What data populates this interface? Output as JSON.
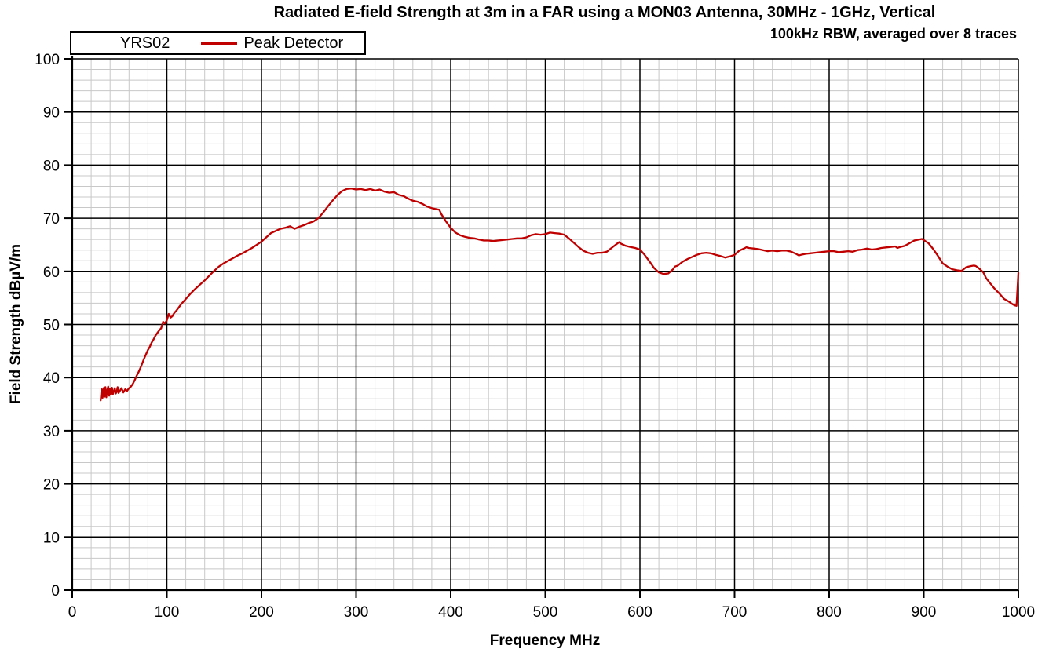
{
  "header": {
    "title": "Radiated E-field Strength at 3m in a FAR using a MON03 Antenna, 30MHz - 1GHz, Vertical",
    "subtitle": "100kHz RBW, averaged over 8 traces"
  },
  "legend": {
    "series_name": "YRS02",
    "detector_label": "Peak Detector"
  },
  "colors": {
    "trace": "#C00000",
    "grid_minor": "#C8C8C8",
    "grid_major": "#000000",
    "axis": "#000000",
    "background": "#FFFFFF"
  },
  "chart_data": {
    "type": "line",
    "title": "Radiated E-field Strength at 3m in a FAR using a MON03 Antenna, 30MHz - 1GHz, Vertical",
    "subtitle": "100kHz RBW, averaged over 8 traces",
    "xlabel": "Frequency MHz",
    "ylabel": "Field Strength dBµV/m",
    "xlim": [
      0,
      1000
    ],
    "ylim": [
      0,
      100
    ],
    "x_ticks": [
      0,
      100,
      200,
      300,
      400,
      500,
      600,
      700,
      800,
      900,
      1000
    ],
    "y_ticks": [
      0,
      10,
      20,
      30,
      40,
      50,
      60,
      70,
      80,
      90,
      100
    ],
    "x_minor_step": 20,
    "y_minor_step": 2,
    "grid": true,
    "legend_position": "top-left",
    "series": [
      {
        "name": "YRS02 Peak Detector",
        "color": "#C00000",
        "x": [
          30,
          31,
          32,
          33,
          34,
          35,
          36,
          37,
          38,
          39,
          40,
          41,
          42,
          43,
          44,
          45,
          46,
          47,
          48,
          49,
          50,
          52,
          54,
          56,
          58,
          60,
          62,
          64,
          66,
          68,
          70,
          72,
          74,
          76,
          78,
          80,
          82,
          84,
          86,
          88,
          90,
          92,
          94,
          96,
          98,
          100,
          102,
          104,
          106,
          108,
          110,
          115,
          120,
          125,
          130,
          135,
          140,
          145,
          150,
          155,
          160,
          165,
          170,
          175,
          180,
          185,
          190,
          195,
          200,
          205,
          210,
          215,
          220,
          225,
          230,
          235,
          240,
          245,
          250,
          255,
          260,
          265,
          270,
          275,
          280,
          285,
          290,
          295,
          300,
          305,
          310,
          315,
          320,
          325,
          330,
          335,
          340,
          345,
          350,
          355,
          360,
          365,
          370,
          375,
          380,
          385,
          388,
          390,
          395,
          400,
          405,
          410,
          415,
          420,
          425,
          430,
          435,
          440,
          445,
          450,
          455,
          460,
          465,
          470,
          475,
          480,
          485,
          490,
          495,
          500,
          505,
          510,
          515,
          520,
          525,
          530,
          535,
          540,
          545,
          550,
          555,
          560,
          565,
          570,
          575,
          578,
          580,
          585,
          590,
          595,
          600,
          605,
          610,
          615,
          620,
          625,
          630,
          635,
          637,
          640,
          645,
          650,
          655,
          660,
          665,
          670,
          675,
          680,
          685,
          690,
          695,
          700,
          705,
          710,
          713,
          715,
          720,
          725,
          730,
          735,
          740,
          745,
          750,
          755,
          760,
          765,
          768,
          770,
          775,
          780,
          785,
          790,
          795,
          800,
          805,
          810,
          815,
          820,
          825,
          830,
          835,
          840,
          845,
          850,
          855,
          860,
          865,
          870,
          872,
          875,
          880,
          885,
          890,
          895,
          898,
          900,
          905,
          910,
          915,
          920,
          925,
          930,
          935,
          940,
          945,
          950,
          953,
          955,
          958,
          960,
          963,
          966,
          970,
          975,
          980,
          985,
          990,
          993,
          996,
          998,
          1000
        ],
        "y": [
          35.7,
          37.8,
          36.2,
          38.0,
          36.4,
          38.2,
          36.3,
          37.6,
          38.3,
          36.6,
          37.9,
          36.8,
          38.1,
          36.9,
          37.4,
          38.0,
          37.0,
          37.3,
          38.2,
          37.1,
          37.4,
          38.0,
          37.2,
          37.8,
          37.5,
          38.0,
          38.3,
          38.8,
          39.5,
          40.3,
          41.0,
          41.8,
          42.7,
          43.6,
          44.4,
          45.2,
          45.8,
          46.6,
          47.2,
          47.9,
          48.4,
          48.9,
          49.3,
          50.5,
          50.2,
          50.8,
          52.0,
          51.3,
          51.6,
          52.2,
          52.6,
          53.8,
          54.8,
          55.8,
          56.7,
          57.5,
          58.3,
          59.2,
          60.1,
          60.9,
          61.5,
          62.0,
          62.5,
          63.0,
          63.4,
          63.9,
          64.4,
          65.0,
          65.6,
          66.4,
          67.2,
          67.6,
          68.0,
          68.2,
          68.5,
          68.0,
          68.4,
          68.7,
          69.1,
          69.4,
          70.0,
          71.0,
          72.2,
          73.3,
          74.3,
          75.1,
          75.5,
          75.6,
          75.4,
          75.5,
          75.3,
          75.5,
          75.2,
          75.4,
          75.0,
          74.8,
          74.9,
          74.4,
          74.2,
          73.7,
          73.3,
          73.1,
          72.7,
          72.2,
          71.9,
          71.7,
          71.6,
          70.8,
          69.4,
          68.2,
          67.3,
          66.8,
          66.5,
          66.3,
          66.2,
          66.0,
          65.8,
          65.8,
          65.7,
          65.8,
          65.9,
          66.0,
          66.1,
          66.2,
          66.2,
          66.4,
          66.8,
          67.0,
          66.9,
          67.0,
          67.3,
          67.2,
          67.1,
          66.9,
          66.2,
          65.4,
          64.6,
          63.9,
          63.5,
          63.3,
          63.5,
          63.5,
          63.7,
          64.4,
          65.1,
          65.5,
          65.2,
          64.8,
          64.6,
          64.4,
          64.1,
          63.1,
          61.9,
          60.6,
          59.8,
          59.5,
          59.6,
          60.4,
          60.9,
          61.1,
          61.8,
          62.3,
          62.7,
          63.1,
          63.4,
          63.5,
          63.4,
          63.1,
          62.9,
          62.6,
          62.8,
          63.1,
          63.9,
          64.3,
          64.6,
          64.4,
          64.3,
          64.2,
          64.0,
          63.8,
          63.9,
          63.8,
          63.9,
          63.9,
          63.7,
          63.3,
          63.0,
          63.1,
          63.3,
          63.4,
          63.5,
          63.6,
          63.7,
          63.8,
          63.8,
          63.6,
          63.7,
          63.8,
          63.7,
          64.0,
          64.1,
          64.3,
          64.1,
          64.2,
          64.4,
          64.5,
          64.6,
          64.7,
          64.4,
          64.6,
          64.8,
          65.3,
          65.8,
          66.0,
          66.1,
          65.9,
          65.3,
          64.2,
          62.9,
          61.5,
          60.9,
          60.4,
          60.2,
          60.1,
          60.8,
          61.0,
          61.1,
          61.0,
          60.6,
          60.3,
          59.8,
          58.7,
          57.8,
          56.7,
          55.8,
          54.8,
          54.3,
          53.9,
          53.6,
          53.5,
          59.7
        ]
      }
    ]
  }
}
